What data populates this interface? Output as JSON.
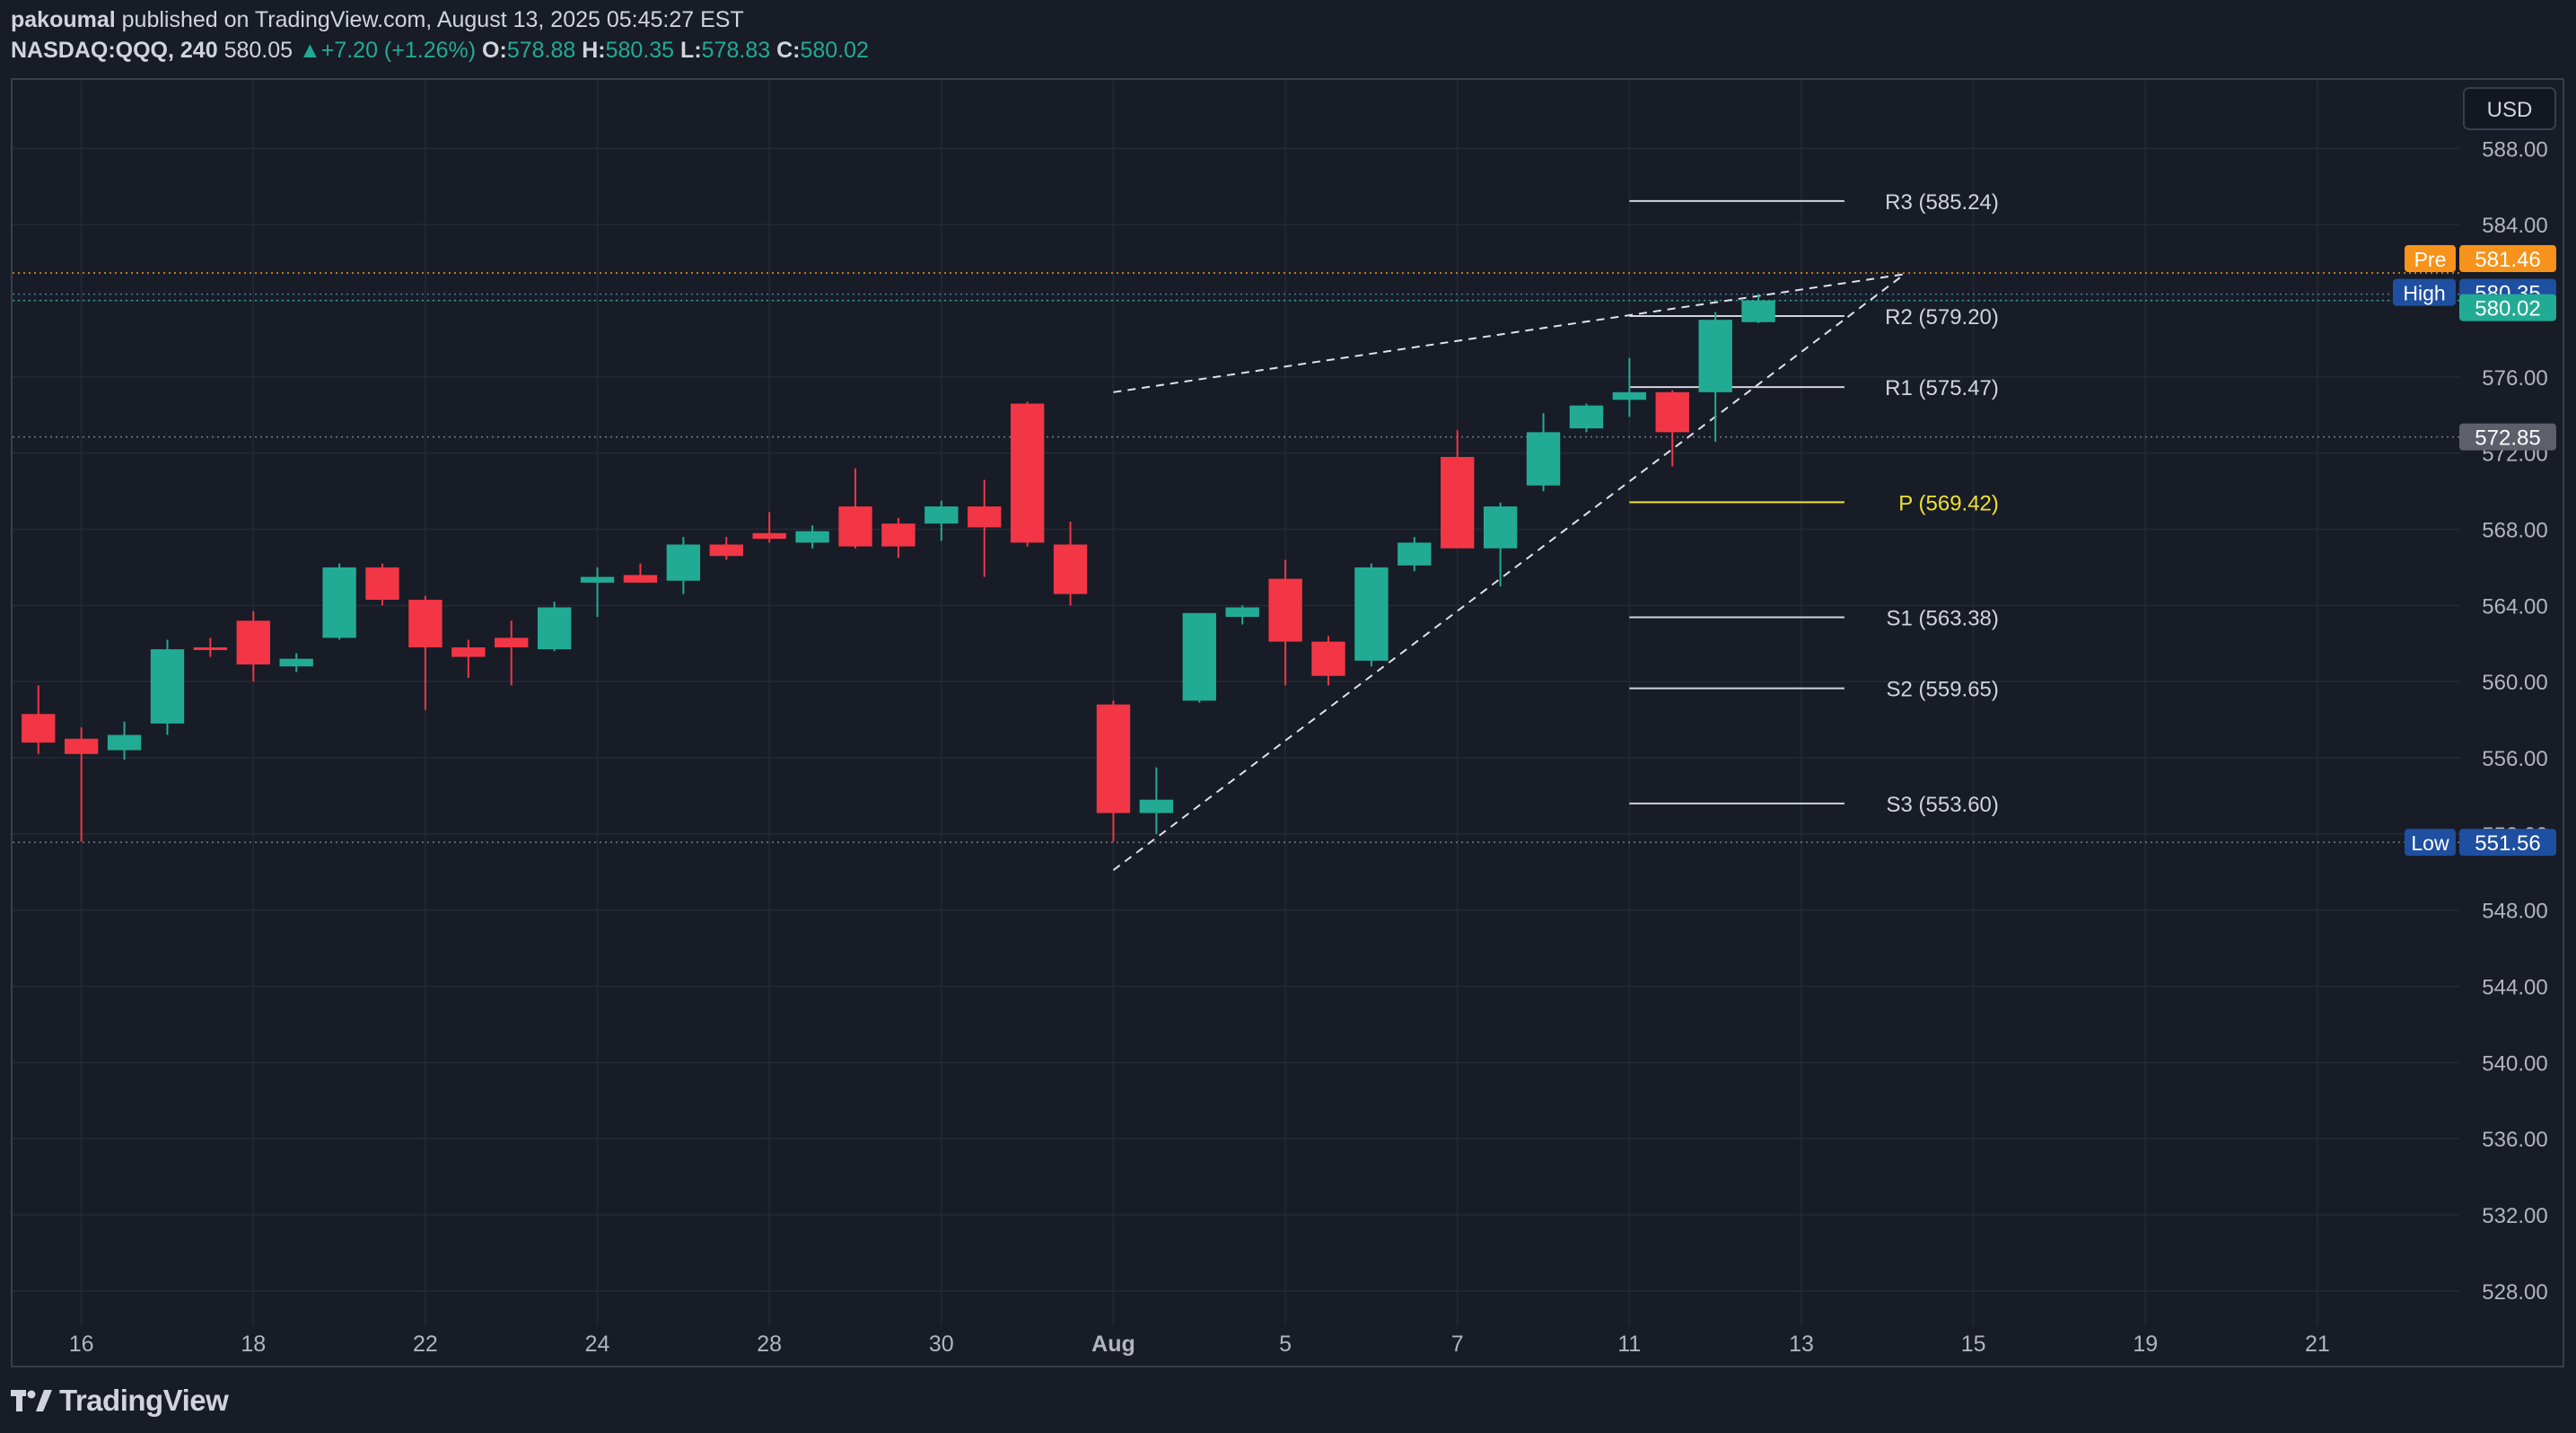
{
  "header": {
    "author": "pakoumal",
    "published_text": "published on TradingView.com, August 13, 2025 05:45:27 EST",
    "symbol": "NASDAQ:QQQ, 240",
    "last": "580.05",
    "change_arrow": "▲",
    "change": "+7.20 (+1.26%)",
    "o_label": "O:",
    "o_value": "578.88",
    "h_label": "H:",
    "h_value": "580.35",
    "l_label": "L:",
    "l_value": "578.83",
    "c_label": "C:",
    "c_value": "580.02"
  },
  "footer": {
    "brand": "TradingView",
    "logo_icon": "tradingview-logo-icon"
  },
  "colors": {
    "background": "#181c27",
    "grid": "#262a36",
    "up": "#22ab94",
    "down": "#f23645",
    "pivot_p": "#f0e130",
    "pivot_levels": "#d1d4dc",
    "pre_market": "#f7931a",
    "high_low_label": "#1e3a8a"
  },
  "chart_data": {
    "type": "candlestick",
    "currency": "USD",
    "y_ticks": [
      "588.00",
      "584.00",
      "580.00",
      "576.00",
      "572.00",
      "568.00",
      "564.00",
      "560.00",
      "556.00",
      "552.00",
      "548.00",
      "544.00",
      "540.00",
      "536.00",
      "532.00",
      "528.00"
    ],
    "y_tick_values": [
      588,
      584,
      580,
      576,
      572,
      568,
      564,
      560,
      556,
      552,
      548,
      544,
      540,
      536,
      532,
      528
    ],
    "ylim": [
      526.2,
      591.6
    ],
    "x_ticks": [
      {
        "label": "16",
        "bar": 1
      },
      {
        "label": "18",
        "bar": 5
      },
      {
        "label": "22",
        "bar": 9
      },
      {
        "label": "24",
        "bar": 13
      },
      {
        "label": "28",
        "bar": 17
      },
      {
        "label": "30",
        "bar": 21
      },
      {
        "label": "Aug",
        "bar": 25
      },
      {
        "label": "5",
        "bar": 29
      },
      {
        "label": "7",
        "bar": 33
      },
      {
        "label": "11",
        "bar": 37
      },
      {
        "label": "13",
        "bar": 41
      },
      {
        "label": "15",
        "bar": 45
      },
      {
        "label": "19",
        "bar": 49
      },
      {
        "label": "21",
        "bar": 53
      }
    ],
    "x_range_bars": [
      -0.6,
      56.3
    ],
    "candles": [
      {
        "o": 558.3,
        "h": 559.8,
        "l": 556.2,
        "c": 556.8
      },
      {
        "o": 557.0,
        "h": 557.6,
        "l": 551.6,
        "c": 556.2
      },
      {
        "o": 556.4,
        "h": 557.9,
        "l": 555.9,
        "c": 557.2
      },
      {
        "o": 557.8,
        "h": 562.2,
        "l": 557.2,
        "c": 561.7
      },
      {
        "o": 561.8,
        "h": 562.3,
        "l": 561.3,
        "c": 561.7
      },
      {
        "o": 563.2,
        "h": 563.7,
        "l": 560.0,
        "c": 560.9
      },
      {
        "o": 560.8,
        "h": 561.5,
        "l": 560.5,
        "c": 561.2
      },
      {
        "o": 562.3,
        "h": 566.2,
        "l": 562.2,
        "c": 566.0
      },
      {
        "o": 566.0,
        "h": 566.2,
        "l": 564.0,
        "c": 564.3
      },
      {
        "o": 564.3,
        "h": 564.5,
        "l": 558.5,
        "c": 561.8
      },
      {
        "o": 561.8,
        "h": 562.2,
        "l": 560.2,
        "c": 561.3
      },
      {
        "o": 562.3,
        "h": 563.2,
        "l": 559.8,
        "c": 561.8
      },
      {
        "o": 561.7,
        "h": 564.2,
        "l": 561.6,
        "c": 563.9
      },
      {
        "o": 565.2,
        "h": 566.0,
        "l": 563.4,
        "c": 565.5
      },
      {
        "o": 565.6,
        "h": 566.2,
        "l": 565.2,
        "c": 565.2
      },
      {
        "o": 565.3,
        "h": 567.6,
        "l": 564.6,
        "c": 567.2
      },
      {
        "o": 567.2,
        "h": 567.6,
        "l": 566.4,
        "c": 566.6
      },
      {
        "o": 567.8,
        "h": 568.9,
        "l": 567.3,
        "c": 567.5
      },
      {
        "o": 567.3,
        "h": 568.2,
        "l": 567.0,
        "c": 567.9
      },
      {
        "o": 569.2,
        "h": 571.2,
        "l": 567.0,
        "c": 567.1
      },
      {
        "o": 568.3,
        "h": 568.6,
        "l": 566.5,
        "c": 567.1
      },
      {
        "o": 568.3,
        "h": 569.5,
        "l": 567.4,
        "c": 569.2
      },
      {
        "o": 569.2,
        "h": 570.6,
        "l": 565.5,
        "c": 568.1
      },
      {
        "o": 574.6,
        "h": 574.7,
        "l": 567.1,
        "c": 567.3
      },
      {
        "o": 567.2,
        "h": 568.4,
        "l": 564.0,
        "c": 564.6
      },
      {
        "o": 558.8,
        "h": 559.0,
        "l": 551.6,
        "c": 553.1
      },
      {
        "o": 553.1,
        "h": 555.5,
        "l": 552.0,
        "c": 553.8
      },
      {
        "o": 559.0,
        "h": 563.6,
        "l": 558.9,
        "c": 563.6
      },
      {
        "o": 563.4,
        "h": 564.0,
        "l": 563.0,
        "c": 563.9
      },
      {
        "o": 565.4,
        "h": 566.4,
        "l": 559.8,
        "c": 562.1
      },
      {
        "o": 562.1,
        "h": 562.4,
        "l": 559.8,
        "c": 560.3
      },
      {
        "o": 561.1,
        "h": 566.2,
        "l": 560.8,
        "c": 566.0
      },
      {
        "o": 566.1,
        "h": 567.6,
        "l": 565.8,
        "c": 567.3
      },
      {
        "o": 571.8,
        "h": 573.2,
        "l": 567.0,
        "c": 567.0
      },
      {
        "o": 567.0,
        "h": 569.4,
        "l": 565.0,
        "c": 569.2
      },
      {
        "o": 570.3,
        "h": 574.1,
        "l": 570.0,
        "c": 573.1
      },
      {
        "o": 573.3,
        "h": 574.6,
        "l": 573.1,
        "c": 574.5
      },
      {
        "o": 574.8,
        "h": 577.0,
        "l": 573.9,
        "c": 575.2
      },
      {
        "o": 575.2,
        "h": 575.3,
        "l": 571.3,
        "c": 573.1
      },
      {
        "o": 575.2,
        "h": 579.4,
        "l": 572.6,
        "c": 579.0
      },
      {
        "o": 578.88,
        "h": 580.35,
        "l": 578.83,
        "c": 580.02
      }
    ],
    "pivots": [
      {
        "label": "R3 (585.24)",
        "value": 585.24,
        "key": "R3"
      },
      {
        "label": "R2 (579.20)",
        "value": 579.2,
        "key": "R2"
      },
      {
        "label": "R1 (575.47)",
        "value": 575.47,
        "key": "R1"
      },
      {
        "label": "P (569.42)",
        "value": 569.42,
        "key": "P"
      },
      {
        "label": "S1 (563.38)",
        "value": 563.38,
        "key": "S1"
      },
      {
        "label": "S2 (559.65)",
        "value": 559.65,
        "key": "S2"
      },
      {
        "label": "S3 (553.60)",
        "value": 553.6,
        "key": "S3"
      }
    ],
    "pivot_bar_range": [
      37,
      42
    ],
    "trendlines": [
      {
        "from": {
          "bar": 25,
          "price": 575.2
        },
        "to": {
          "bar": 43.4,
          "price": 581.4
        }
      },
      {
        "from": {
          "bar": 25,
          "price": 550.1
        },
        "to": {
          "bar": 43.4,
          "price": 581.4
        }
      }
    ],
    "price_labels": [
      {
        "prefix": "Pre",
        "value": "581.46",
        "price": 581.46,
        "key": "pre"
      },
      {
        "prefix": "High",
        "value": "580.35",
        "price": 580.35,
        "key": "high"
      },
      {
        "prefix": "",
        "value": "580.02",
        "price": 580.02,
        "key": "last"
      },
      {
        "prefix": "",
        "value": "572.85",
        "price": 572.85,
        "key": "prev_close"
      },
      {
        "prefix": "Low",
        "value": "551.56",
        "price": 551.56,
        "key": "low"
      }
    ]
  }
}
